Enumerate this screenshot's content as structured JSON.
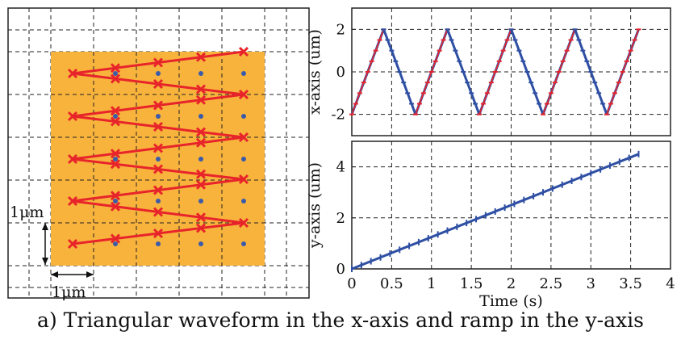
{
  "caption": "a) Triangular waveform in the x-axis and ramp in the y-axis",
  "scan_diagram": {
    "scale_vertical": "1μm",
    "scale_horizontal": "1μm",
    "colors": {
      "region": "#F8B33C",
      "path": "#E8242B",
      "dot": "#3B5BAA"
    }
  },
  "chart_data": [
    {
      "type": "line",
      "title": "",
      "xlabel": "",
      "ylabel": "x-axis (um)",
      "xlim": [
        0,
        4
      ],
      "ylim": [
        -3,
        3
      ],
      "xticks": [
        "0",
        "0.5",
        "1",
        "1.5",
        "2",
        "2.5",
        "3",
        "3.5",
        "4"
      ],
      "yticks": [
        "-2",
        "0",
        "2"
      ],
      "grid": true,
      "series": [
        {
          "color": "#2E4FA3",
          "marker_color": "#E8242B",
          "x": [
            0,
            0.4,
            0.8,
            1.2,
            1.6,
            2.0,
            2.4,
            2.8,
            3.2,
            3.6
          ],
          "y": [
            -2,
            2,
            -2,
            2,
            -2,
            2,
            -2,
            2,
            -2,
            2
          ]
        }
      ]
    },
    {
      "type": "line",
      "title": "",
      "xlabel": "Time (s)",
      "ylabel": "y-axis (um)",
      "xlim": [
        0,
        4
      ],
      "ylim": [
        0,
        5
      ],
      "xticks": [
        "0",
        "0.5",
        "1",
        "1.5",
        "2",
        "2.5",
        "3",
        "3.5",
        "4"
      ],
      "yticks": [
        "0",
        "2",
        "4"
      ],
      "grid": true,
      "series": [
        {
          "color": "#2E4FA3",
          "x": [
            0,
            3.6
          ],
          "y": [
            0,
            4.5
          ]
        }
      ]
    }
  ]
}
